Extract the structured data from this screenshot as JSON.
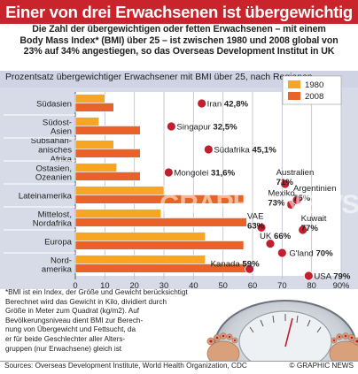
{
  "header": {
    "title": "Einer von drei Erwachsenen ist übergewichtig",
    "subtitle_lines": [
      "Die Zahl der übergewichtigen oder fetten Erwachsenen – mit einem",
      "Body Mass Index* (BMI) über 25 – ist zwischen 1980 und 2008 global von",
      "23% auf 34% angestiegen, so das Overseas Development Institut in UK"
    ],
    "chart_description": "Prozentsatz übergewichtiger Erwachsener mit BMI über 25, nach Regionen"
  },
  "chart_data": {
    "type": "bar",
    "orientation": "horizontal",
    "categories": [
      [
        "Südasien"
      ],
      [
        "Südost-",
        "Asien"
      ],
      [
        "Subsahari-",
        "anisches",
        "Afrika"
      ],
      [
        "Ostasien,",
        "Ozeanien"
      ],
      [
        "Lateinamerika"
      ],
      [
        "Mittelost,",
        "Nordafrika"
      ],
      [
        "Europa"
      ],
      [
        "Nord-",
        "amerika"
      ]
    ],
    "series": [
      {
        "name": "1980",
        "color": "#f6a623",
        "values": [
          10,
          8,
          13,
          14,
          30,
          29,
          44,
          44
        ]
      },
      {
        "name": "2008",
        "color": "#e8622a",
        "values": [
          13,
          22,
          22,
          22,
          57,
          58,
          57,
          60
        ]
      }
    ],
    "xlim": [
      0,
      90
    ],
    "xticks": [
      "0",
      "10",
      "20",
      "30",
      "40",
      "50",
      "60",
      "70",
      "80",
      "90%"
    ],
    "grid": true,
    "legend_position": "top-right",
    "annotations": [
      {
        "name": "Iran",
        "value": "42,8%",
        "pct": 42.8,
        "row": 0
      },
      {
        "name": "Singapur",
        "value": "32,5%",
        "pct": 32.5,
        "row": 1
      },
      {
        "name": "Südafrika",
        "value": "45,1%",
        "pct": 45.1,
        "row": 2
      },
      {
        "name": "Mongolei",
        "value": "31,6%",
        "pct": 31.6,
        "row": 3
      },
      {
        "name": "Australien",
        "value": "71%",
        "pct": 71,
        "row": 3.5
      },
      {
        "name": "Mexiko",
        "value": "73%",
        "pct": 73,
        "row": 4.4
      },
      {
        "name": "Argentinien",
        "value": "75%",
        "pct": 75,
        "row": 4.2
      },
      {
        "name": "VAE",
        "value": "63%",
        "pct": 63,
        "row": 5.4
      },
      {
        "name": "Kuwait",
        "value": "77%",
        "pct": 77,
        "row": 5.5
      },
      {
        "name": "UK",
        "value": "66%",
        "pct": 66,
        "row": 6.1
      },
      {
        "name": "G'land",
        "value": "70%",
        "pct": 70,
        "row": 6.5
      },
      {
        "name": "Kanada",
        "value": "59%",
        "pct": 59,
        "row": 7.2
      },
      {
        "name": "USA",
        "value": "79%",
        "pct": 79,
        "row": 7.5
      }
    ]
  },
  "footnote_lines": [
    "*BMI ist ein Index, der Größe und Gewicht berücksichtigt.",
    "Berechnet wird das Gewicht in Kilo, dividiert durch",
    "Größe in Meter zum Quadrat (kg/m2). Auf",
    "Bevölkerungsniveau dient BMI zur Berech-",
    "nung von Übergewicht und Fettsucht, da",
    "er für beide Geschlechter aller Alters-",
    "gruppen (nur Erwachsene) gleich ist"
  ],
  "footer": {
    "sources": "Sources: Overseas Development Institute, World Health Organization, CDC",
    "copyright": "© GRAPHIC NEWS"
  },
  "watermark": "GRAPHIC NEWS",
  "colors": {
    "title_bg": "#c9232c",
    "band": "#cfd3e3",
    "panel": "#d7dbe8",
    "dot": "#c21e2e"
  }
}
